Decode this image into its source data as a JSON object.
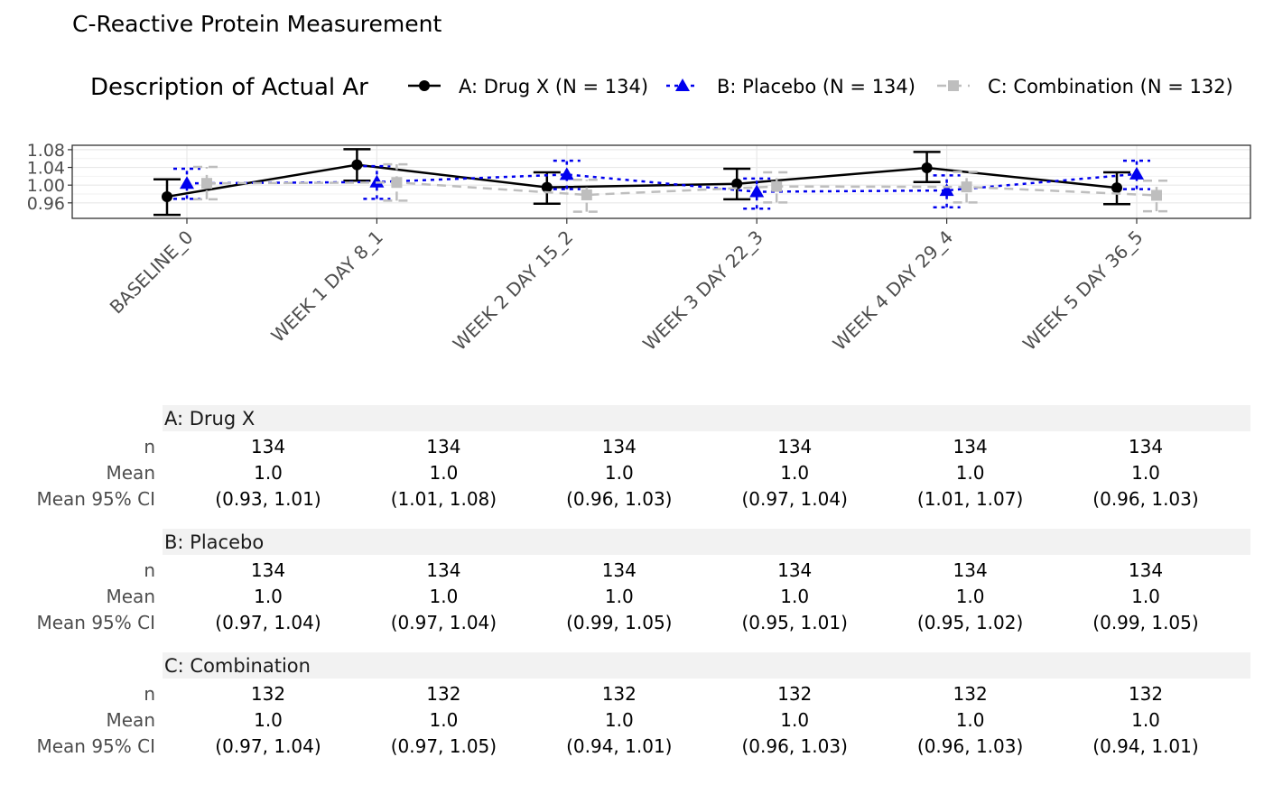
{
  "chart_data": {
    "type": "line",
    "title": "C-Reactive Protein Measurement",
    "legend_title": "Description of Actual Ar",
    "legend_position": "top",
    "categories": [
      "BASELINE_0",
      "WEEK 1 DAY 8_1",
      "WEEK 2 DAY 15_2",
      "WEEK 3 DAY 22_3",
      "WEEK 4 DAY 29_4",
      "WEEK 5 DAY 36_5"
    ],
    "ylim": [
      0.925,
      1.09
    ],
    "yticks": [
      0.96,
      1.0,
      1.04,
      1.08
    ],
    "ytick_labels": [
      "0.96",
      "1.00",
      "1.04",
      "1.08"
    ],
    "grid": true,
    "series": [
      {
        "name": "A: Drug X (N = 134)",
        "color": "#000000",
        "marker": "circle",
        "linestyle": "solid",
        "values": [
          0.974,
          1.046,
          0.995,
          1.003,
          1.039,
          0.994
        ],
        "ci_low": [
          0.933,
          1.01,
          0.958,
          0.968,
          1.007,
          0.957
        ],
        "ci_high": [
          1.013,
          1.081,
          1.029,
          1.037,
          1.075,
          1.029
        ]
      },
      {
        "name": "B: Placebo (N = 134)",
        "color": "#0000ee",
        "marker": "triangle",
        "linestyle": "dotted",
        "values": [
          1.004,
          1.007,
          1.024,
          0.985,
          0.988,
          1.025
        ],
        "ci_low": [
          0.969,
          0.969,
          0.991,
          0.947,
          0.95,
          0.991
        ],
        "ci_high": [
          1.037,
          1.043,
          1.055,
          1.015,
          1.022,
          1.055
        ]
      },
      {
        "name": "C: Combination (N = 132)",
        "color": "#bebebe",
        "marker": "square",
        "linestyle": "dashed",
        "values": [
          1.004,
          1.006,
          0.978,
          0.997,
          0.996,
          0.977
        ],
        "ci_low": [
          0.968,
          0.965,
          0.94,
          0.961,
          0.961,
          0.941
        ],
        "ci_high": [
          1.041,
          1.047,
          1.012,
          1.029,
          1.03,
          1.01
        ]
      }
    ]
  },
  "summary_table": {
    "row_labels": [
      "n",
      "Mean",
      "Mean 95% CI"
    ],
    "groups": [
      {
        "name": "A: Drug X",
        "n": [
          "134",
          "134",
          "134",
          "134",
          "134",
          "134"
        ],
        "mean": [
          "1.0",
          "1.0",
          "1.0",
          "1.0",
          "1.0",
          "1.0"
        ],
        "ci": [
          "(0.93, 1.01)",
          "(1.01, 1.08)",
          "(0.96, 1.03)",
          "(0.97, 1.04)",
          "(1.01, 1.07)",
          "(0.96, 1.03)"
        ]
      },
      {
        "name": "B: Placebo",
        "n": [
          "134",
          "134",
          "134",
          "134",
          "134",
          "134"
        ],
        "mean": [
          "1.0",
          "1.0",
          "1.0",
          "1.0",
          "1.0",
          "1.0"
        ],
        "ci": [
          "(0.97, 1.04)",
          "(0.97, 1.04)",
          "(0.99, 1.05)",
          "(0.95, 1.01)",
          "(0.95, 1.02)",
          "(0.99, 1.05)"
        ]
      },
      {
        "name": "C: Combination",
        "n": [
          "132",
          "132",
          "132",
          "132",
          "132",
          "132"
        ],
        "mean": [
          "1.0",
          "1.0",
          "1.0",
          "1.0",
          "1.0",
          "1.0"
        ],
        "ci": [
          "(0.97, 1.04)",
          "(0.97, 1.05)",
          "(0.94, 1.01)",
          "(0.96, 1.03)",
          "(0.96, 1.03)",
          "(0.94, 1.01)"
        ]
      }
    ]
  }
}
